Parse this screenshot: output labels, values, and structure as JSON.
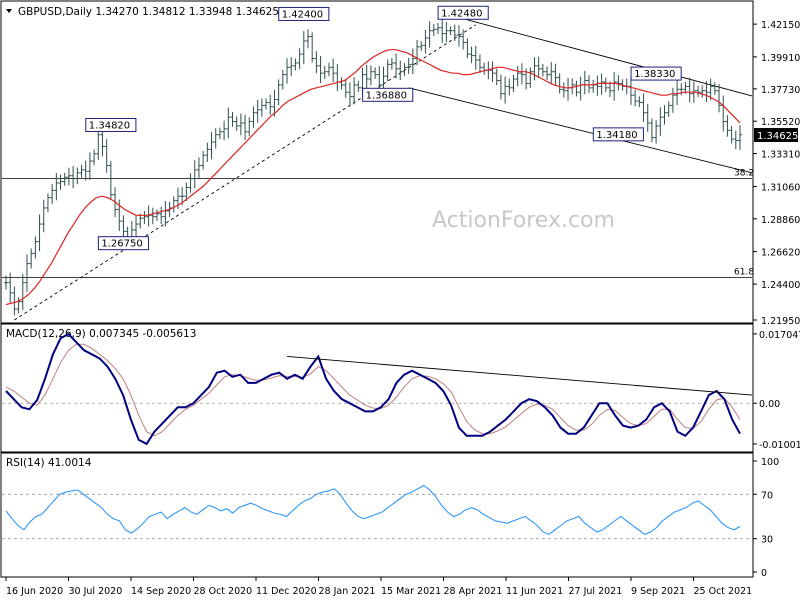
{
  "chart_data": {
    "type": "line",
    "title": "GBPUSD,Daily  1.34270 1.34812 1.33948 1.34625",
    "watermark": "ActionForex.com",
    "x_labels": [
      "16 Jun 2020",
      "30 Jul 2020",
      "14 Sep 2020",
      "28 Oct 2020",
      "11 Dec 2020",
      "28 Jan 2021",
      "15 Mar 2021",
      "28 Apr 2021",
      "11 Jun 2021",
      "27 Jul 2021",
      "9 Sep 2021",
      "25 Oct 2021"
    ],
    "price_panel": {
      "ylim": [
        1.2195,
        1.4325
      ],
      "y_ticks": [
        "1.42150",
        "1.39910",
        "1.37730",
        "1.35520",
        "1.33310",
        "1.31060",
        "1.28860",
        "1.26620",
        "1.24400",
        "1.21950"
      ],
      "current_price_label": "1.34625",
      "series": [
        {
          "name": "close",
          "color": "#2f4f4f",
          "values": [
            1.245,
            1.238,
            1.227,
            1.232,
            1.245,
            1.258,
            1.265,
            1.273,
            1.285,
            1.296,
            1.303,
            1.308,
            1.313,
            1.314,
            1.317,
            1.318,
            1.316,
            1.32,
            1.322,
            1.321,
            1.328,
            1.333,
            1.346,
            1.338,
            1.325,
            1.305,
            1.295,
            1.287,
            1.28,
            1.276,
            1.281,
            1.285,
            1.289,
            1.29,
            1.291,
            1.29,
            1.292,
            1.29,
            1.294,
            1.296,
            1.301,
            1.304,
            1.304,
            1.31,
            1.316,
            1.322,
            1.325,
            1.332,
            1.336,
            1.341,
            1.346,
            1.348,
            1.35,
            1.358,
            1.355,
            1.352,
            1.354,
            1.348,
            1.355,
            1.361,
            1.363,
            1.366,
            1.368,
            1.365,
            1.37,
            1.38,
            1.387,
            1.392,
            1.393,
            1.395,
            1.401,
            1.41,
            1.413,
            1.398,
            1.393,
            1.388,
            1.389,
            1.392,
            1.388,
            1.382,
            1.38,
            1.375,
            1.372,
            1.38,
            1.378,
            1.387,
            1.384,
            1.389,
            1.387,
            1.38,
            1.386,
            1.394,
            1.395,
            1.391,
            1.389,
            1.392,
            1.394,
            1.398,
            1.406,
            1.407,
            1.412,
            1.417,
            1.418,
            1.419,
            1.415,
            1.417,
            1.417,
            1.414,
            1.413,
            1.409,
            1.401,
            1.4,
            1.397,
            1.392,
            1.39,
            1.39,
            1.388,
            1.383,
            1.374,
            1.379,
            1.378,
            1.384,
            1.388,
            1.387,
            1.381,
            1.389,
            1.393,
            1.391,
            1.389,
            1.387,
            1.389,
            1.385,
            1.377,
            1.376,
            1.378,
            1.38,
            1.375,
            1.38,
            1.383,
            1.378,
            1.38,
            1.379,
            1.382,
            1.378,
            1.376,
            1.382,
            1.381,
            1.379,
            1.379,
            1.373,
            1.369,
            1.368,
            1.361,
            1.354,
            1.344,
            1.352,
            1.358,
            1.361,
            1.366,
            1.373,
            1.377,
            1.377,
            1.379,
            1.374,
            1.376,
            1.375,
            1.376,
            1.375,
            1.379,
            1.376,
            1.366,
            1.355,
            1.349,
            1.343,
            1.342,
            1.346
          ]
        },
        {
          "name": "moving average",
          "color": "#dd2222",
          "values": [
            1.23,
            1.231,
            1.232,
            1.234,
            1.237,
            1.241,
            1.246,
            1.252,
            1.258,
            1.265,
            1.272,
            1.279,
            1.285,
            1.291,
            1.296,
            1.3,
            1.303,
            1.304,
            1.303,
            1.301,
            1.298,
            1.295,
            1.293,
            1.291,
            1.291,
            1.291,
            1.292,
            1.293,
            1.294,
            1.295,
            1.297,
            1.299,
            1.302,
            1.305,
            1.308,
            1.311,
            1.315,
            1.319,
            1.323,
            1.327,
            1.331,
            1.335,
            1.339,
            1.343,
            1.347,
            1.351,
            1.355,
            1.359,
            1.362,
            1.366,
            1.369,
            1.371,
            1.373,
            1.375,
            1.377,
            1.378,
            1.379,
            1.38,
            1.381,
            1.382,
            1.383,
            1.386,
            1.389,
            1.393,
            1.396,
            1.399,
            1.401,
            1.403,
            1.404,
            1.404,
            1.403,
            1.402,
            1.4,
            1.398,
            1.396,
            1.394,
            1.392,
            1.39,
            1.389,
            1.388,
            1.388,
            1.387,
            1.387,
            1.388,
            1.389,
            1.39,
            1.391,
            1.392,
            1.392,
            1.391,
            1.39,
            1.389,
            1.389,
            1.388,
            1.386,
            1.384,
            1.382,
            1.38,
            1.379,
            1.378,
            1.378,
            1.379,
            1.38,
            1.38,
            1.38,
            1.381,
            1.381,
            1.381,
            1.381,
            1.38,
            1.379,
            1.378,
            1.377,
            1.376,
            1.375,
            1.374,
            1.373,
            1.373,
            1.374,
            1.374,
            1.375,
            1.375,
            1.375,
            1.374,
            1.373,
            1.371,
            1.369,
            1.366,
            1.362,
            1.358,
            1.354
          ]
        }
      ],
      "labels": [
        {
          "text": "1.42400",
          "x_index": 71,
          "y": 1.424
        },
        {
          "text": "1.42480",
          "x_index": 109,
          "y": 1.4248
        },
        {
          "text": "1.34820",
          "x_index": 25,
          "y": 1.3482
        },
        {
          "text": "1.36880",
          "x_index": 91,
          "y": 1.3688
        },
        {
          "text": "1.38330",
          "x_index": 155,
          "y": 1.3833
        },
        {
          "text": "1.34180",
          "x_index": 146,
          "y": 1.3418
        },
        {
          "text": "1.26750",
          "x_index": 28,
          "y": 1.2675
        }
      ],
      "fib_levels": [
        {
          "label": "38.2",
          "value": 1.316
        },
        {
          "label": "61.8",
          "value": 1.2485
        }
      ]
    },
    "macd_panel": {
      "label": "MACD(12,26,9) 0.007345 -0.005613",
      "ylim": [
        -0.0115,
        0.018
      ],
      "y_ticks": [
        "0.017047",
        "0.00",
        "-0.010013"
      ],
      "series": [
        {
          "name": "MACD",
          "color": "#000080",
          "values": [
            0.003,
            0.001,
            -0.001,
            -0.0015,
            0.0008,
            0.006,
            0.012,
            0.016,
            0.017,
            0.015,
            0.013,
            0.012,
            0.011,
            0.009,
            0.006,
            0.002,
            -0.004,
            -0.009,
            -0.01,
            -0.007,
            -0.005,
            -0.003,
            -0.001,
            -0.001,
            0.0,
            0.002,
            0.004,
            0.0075,
            0.008,
            0.0065,
            0.007,
            0.005,
            0.005,
            0.006,
            0.007,
            0.0075,
            0.006,
            0.007,
            0.006,
            0.009,
            0.0115,
            0.006,
            0.003,
            0.001,
            0.0,
            -0.001,
            -0.002,
            -0.002,
            -0.001,
            0.001,
            0.005,
            0.007,
            0.008,
            0.007,
            0.006,
            0.005,
            0.003,
            -0.0005,
            -0.006,
            -0.008,
            -0.008,
            -0.008,
            -0.007,
            -0.0055,
            -0.004,
            -0.002,
            0.0,
            0.001,
            0.0005,
            -0.001,
            -0.003,
            -0.006,
            -0.0075,
            -0.0075,
            -0.006,
            -0.003,
            0.0,
            0.0,
            -0.003,
            -0.0055,
            -0.006,
            -0.0055,
            -0.004,
            -0.001,
            0.0,
            -0.002,
            -0.007,
            -0.008,
            -0.006,
            -0.002,
            0.002,
            0.003,
            0.001,
            -0.004,
            -0.0075
          ]
        },
        {
          "name": "signal",
          "color": "#c08080",
          "values": [
            0.004,
            0.003,
            0.0015,
            0.0,
            -0.0005,
            0.002,
            0.006,
            0.01,
            0.013,
            0.0145,
            0.0145,
            0.0135,
            0.012,
            0.0105,
            0.0085,
            0.006,
            0.002,
            -0.003,
            -0.007,
            -0.008,
            -0.007,
            -0.005,
            -0.003,
            -0.0015,
            -0.0005,
            0.001,
            0.0025,
            0.0045,
            0.0065,
            0.007,
            0.0068,
            0.0062,
            0.0056,
            0.0057,
            0.0062,
            0.0068,
            0.0066,
            0.0066,
            0.0064,
            0.0072,
            0.009,
            0.008,
            0.006,
            0.004,
            0.002,
            0.0008,
            -0.0005,
            -0.0012,
            -0.0013,
            -0.0005,
            0.0015,
            0.004,
            0.006,
            0.0068,
            0.0066,
            0.006,
            0.0048,
            0.0028,
            -0.001,
            -0.0045,
            -0.0065,
            -0.0075,
            -0.0075,
            -0.0068,
            -0.0058,
            -0.0042,
            -0.0025,
            -0.001,
            -0.0002,
            -0.0005,
            -0.0015,
            -0.0035,
            -0.0055,
            -0.0066,
            -0.0066,
            -0.0052,
            -0.003,
            -0.0015,
            -0.0018,
            -0.0035,
            -0.005,
            -0.0055,
            -0.005,
            -0.0032,
            -0.0015,
            -0.0015,
            -0.004,
            -0.006,
            -0.0062,
            -0.0045,
            -0.0015,
            0.0008,
            0.0012,
            -0.001,
            -0.004
          ]
        }
      ],
      "trendline": {
        "from": [
          0.0115,
          67
        ],
        "to": [
          0.002,
          149
        ]
      }
    },
    "rsi_panel": {
      "label": "RSI(14) 41.0014",
      "ylim": [
        0,
        100
      ],
      "y_ticks": [
        "100",
        "70",
        "30",
        "0"
      ],
      "series": [
        {
          "name": "RSI",
          "color": "#1e90ff",
          "values": [
            55,
            48,
            42,
            38,
            45,
            50,
            52,
            58,
            64,
            70,
            72,
            73,
            74,
            70,
            66,
            62,
            58,
            52,
            48,
            46,
            38,
            35,
            39,
            44,
            50,
            52,
            54,
            48,
            52,
            55,
            58,
            54,
            52,
            56,
            60,
            58,
            55,
            57,
            53,
            58,
            60,
            62,
            60,
            57,
            55,
            53,
            52,
            50,
            55,
            60,
            64,
            66,
            70,
            72,
            73,
            75,
            70,
            62,
            55,
            50,
            48,
            50,
            52,
            54,
            58,
            62,
            66,
            70,
            72,
            75,
            78,
            74,
            68,
            60,
            54,
            50,
            52,
            56,
            58,
            56,
            52,
            49,
            46,
            45,
            44,
            46,
            48,
            50,
            46,
            42,
            36,
            34,
            38,
            42,
            46,
            48,
            50,
            44,
            40,
            36,
            38,
            42,
            46,
            50,
            46,
            42,
            38,
            34,
            36,
            40,
            46,
            50,
            54,
            56,
            58,
            62,
            64,
            60,
            56,
            50,
            44,
            40,
            38,
            41
          ]
        }
      ],
      "levels": [
        70,
        30
      ]
    }
  }
}
